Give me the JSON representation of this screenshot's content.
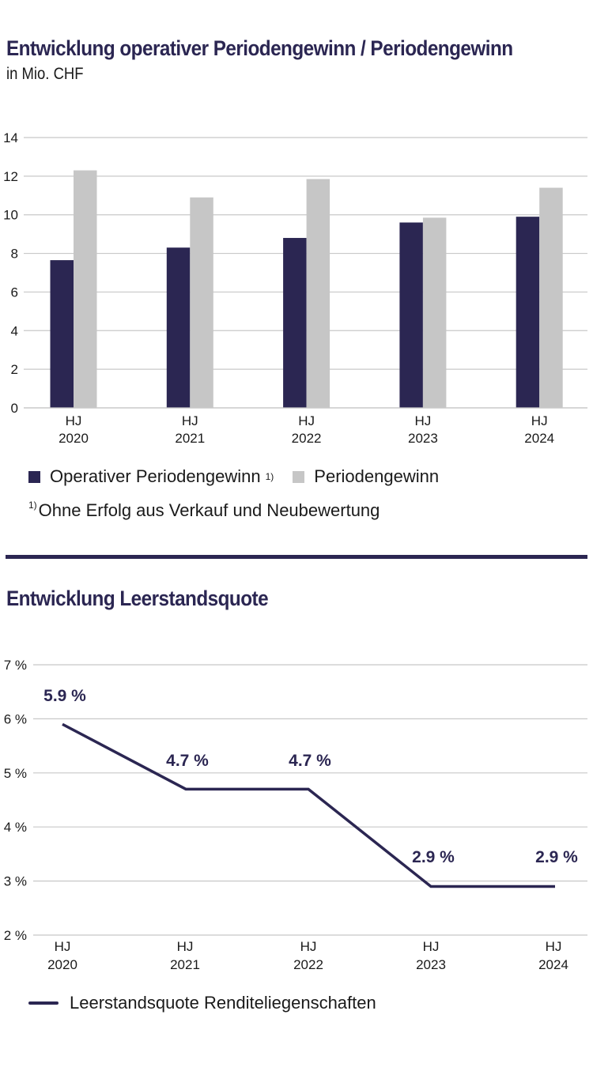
{
  "colors": {
    "primary": "#2b2652",
    "secondary": "#c6c6c6",
    "grid": "#c8c8c8",
    "text": "#1a1a1a"
  },
  "chart_data": [
    {
      "type": "bar",
      "title": "Entwicklung operativer Periodengewinn / Periodengewinn",
      "subtitle": "in Mio. CHF",
      "xlabel": "",
      "ylabel": "",
      "categories": [
        {
          "line1": "HJ",
          "line2": "2020"
        },
        {
          "line1": "HJ",
          "line2": "2021"
        },
        {
          "line1": "HJ",
          "line2": "2022"
        },
        {
          "line1": "HJ",
          "line2": "2023"
        },
        {
          "line1": "HJ",
          "line2": "2024"
        }
      ],
      "series": [
        {
          "name": "Operativer Periodengewinn",
          "footnote_marker": "1)",
          "color": "#2b2652",
          "values": [
            7.65,
            8.3,
            8.8,
            9.6,
            9.9
          ]
        },
        {
          "name": "Periodengewinn",
          "color": "#c6c6c6",
          "values": [
            12.3,
            10.9,
            11.85,
            9.85,
            11.4
          ]
        }
      ],
      "ylim": [
        0,
        14
      ],
      "yticks": [
        "0",
        "2",
        "4",
        "6",
        "8",
        "10",
        "12",
        "14"
      ],
      "grid": true,
      "legend_position": "bottom-left",
      "footnote": {
        "marker": "1)",
        "text": "Ohne Erfolg aus Verkauf und Neubewertung"
      }
    },
    {
      "type": "line",
      "title": "Entwicklung Leerstandsquote",
      "xlabel": "",
      "ylabel": "",
      "categories": [
        {
          "line1": "HJ",
          "line2": "2020"
        },
        {
          "line1": "HJ",
          "line2": "2021"
        },
        {
          "line1": "HJ",
          "line2": "2022"
        },
        {
          "line1": "HJ",
          "line2": "2023"
        },
        {
          "line1": "HJ",
          "line2": "2024"
        }
      ],
      "series": [
        {
          "name": "Leerstandsquote Renditeliegenschaften",
          "color": "#2b2652",
          "values": [
            5.9,
            4.7,
            4.7,
            2.9,
            2.9
          ],
          "data_labels": [
            "5.9 %",
            "4.7 %",
            "4.7 %",
            "2.9 %",
            "2.9 %"
          ]
        }
      ],
      "ylim": [
        2,
        7
      ],
      "yticks": [
        "2 %",
        "3 %",
        "4 %",
        "5 %",
        "6 %",
        "7 %"
      ],
      "grid": true,
      "legend_position": "bottom-left"
    }
  ]
}
